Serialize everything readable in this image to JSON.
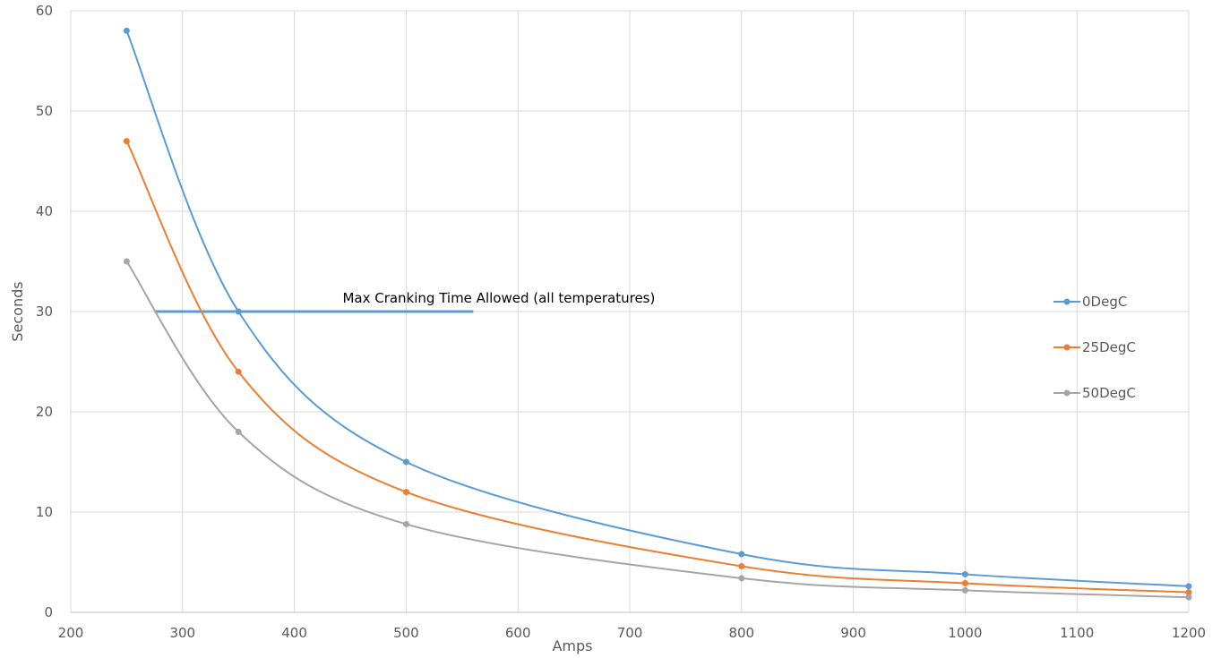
{
  "chart_data": {
    "type": "line",
    "title": "",
    "xlabel": "Amps",
    "ylabel": "Seconds",
    "xlim": [
      200,
      1200
    ],
    "ylim": [
      0,
      60
    ],
    "xticks": [
      200,
      300,
      400,
      500,
      600,
      700,
      800,
      900,
      1000,
      1100,
      1200
    ],
    "yticks": [
      0,
      10,
      20,
      30,
      40,
      50,
      60
    ],
    "grid": true,
    "smooth": true,
    "legend_position": "right",
    "x": [
      250,
      350,
      500,
      800,
      1000,
      1200
    ],
    "series": [
      {
        "name": "0DegC",
        "color": "#5B9BD5",
        "values": [
          58,
          30,
          15,
          5.8,
          3.8,
          2.6
        ]
      },
      {
        "name": "25DegC",
        "color": "#ED7D31",
        "values": [
          47,
          24,
          12,
          4.6,
          2.9,
          2.0
        ]
      },
      {
        "name": "50DegC",
        "color": "#A5A5A5",
        "values": [
          35,
          18,
          8.8,
          3.4,
          2.2,
          1.5
        ]
      }
    ],
    "reference_line": {
      "y": 30,
      "x_start": 275,
      "x_end": 560,
      "color": "#5B9BD5"
    },
    "annotation": {
      "text": "Max Cranking Time Allowed (all temperatures)",
      "x": 480,
      "y": 30
    }
  }
}
